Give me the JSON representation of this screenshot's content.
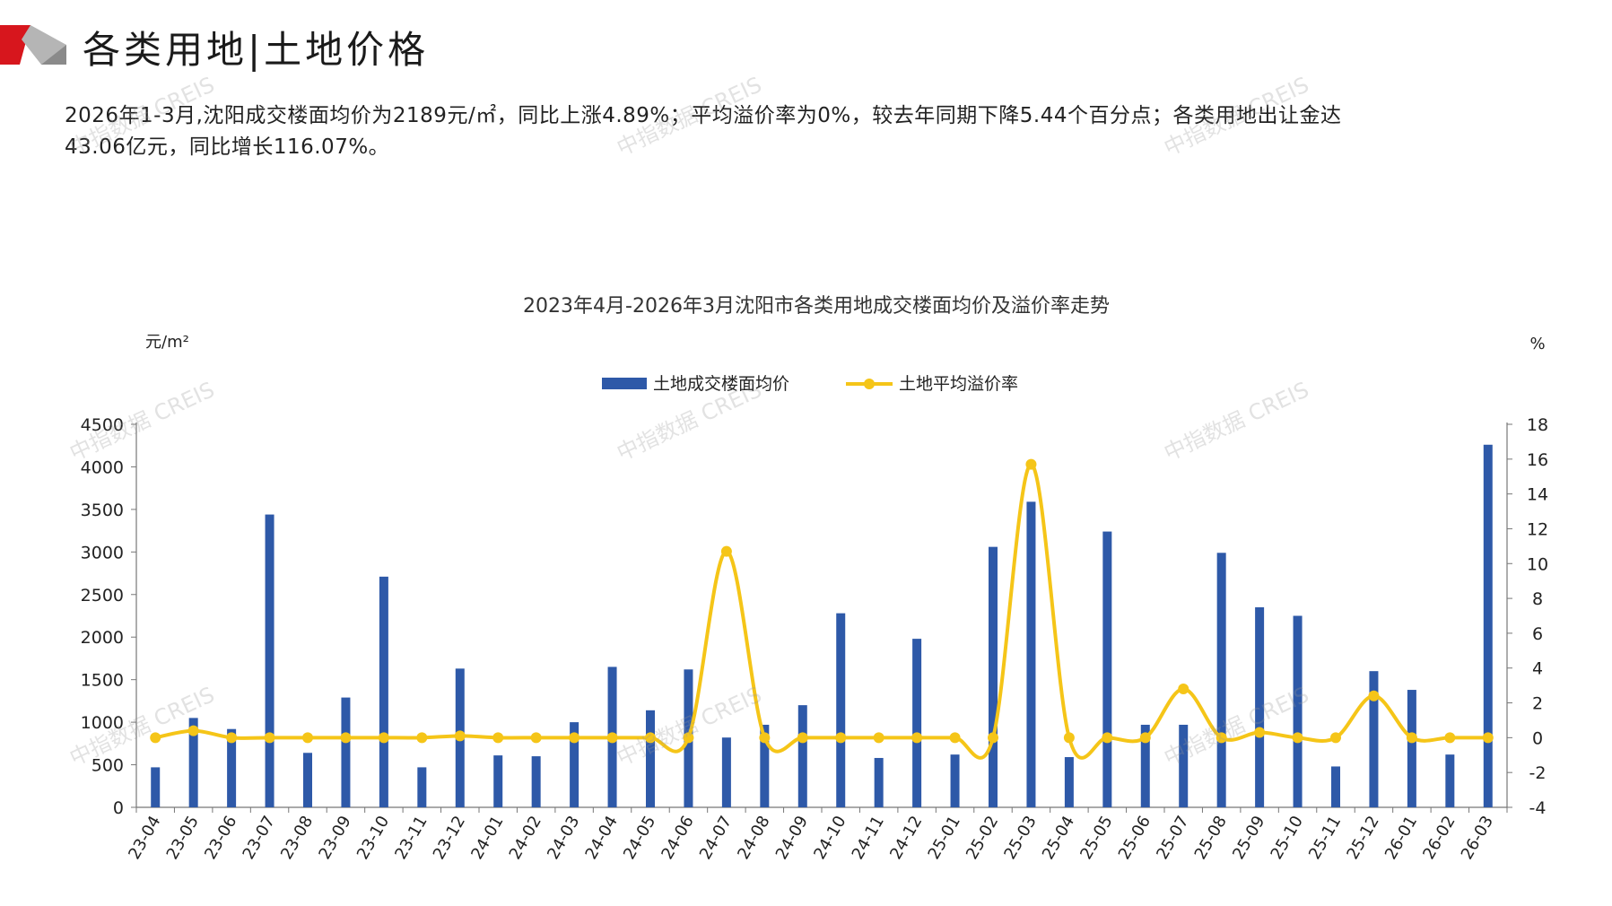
{
  "header": {
    "title": "各类用地|土地价格"
  },
  "summary": {
    "line1": "2026年1-3月,沈阳成交楼面均价为2189元/㎡，同比上涨4.89%；平均溢价率为0%，较去年同期下降5.44个百分点；各类用地出让金达",
    "line2": "43.06亿元，同比增长116.07%。"
  },
  "watermark": {
    "text": "中指数据 CREIS"
  },
  "colors": {
    "bar": "#2e59a8",
    "line": "#f5c518",
    "logo_red": "#d7161d",
    "logo_grey": "#9a9a9a"
  },
  "chart_data": {
    "type": "bar",
    "title": "2023年4月-2026年3月沈阳市各类用地成交楼面均价及溢价率走势",
    "y_left_label": "元/m²",
    "y_right_label": "%",
    "legend_placement": "top-center",
    "ylim_left": [
      0,
      4500
    ],
    "ylim_right": [
      -4,
      18
    ],
    "yticks_left": [
      "0",
      "500",
      "1000",
      "1500",
      "2000",
      "2500",
      "3000",
      "3500",
      "4000",
      "4500"
    ],
    "yticks_right": [
      "-4",
      "-2",
      "0",
      "2",
      "4",
      "6",
      "8",
      "10",
      "12",
      "14",
      "16",
      "18"
    ],
    "categories": [
      "23-04",
      "23-05",
      "23-06",
      "23-07",
      "23-08",
      "23-09",
      "23-10",
      "23-11",
      "23-12",
      "24-01",
      "24-02",
      "24-03",
      "24-04",
      "24-05",
      "24-06",
      "24-07",
      "24-08",
      "24-09",
      "24-10",
      "24-11",
      "24-12",
      "25-01",
      "25-02",
      "25-03",
      "25-04",
      "25-05",
      "25-06",
      "25-07",
      "25-08",
      "25-09",
      "25-10",
      "25-11",
      "25-12",
      "26-01",
      "26-02",
      "26-03"
    ],
    "series": [
      {
        "name": "土地成交楼面均价",
        "type": "bar",
        "axis": "left",
        "values": [
          470,
          1050,
          920,
          3440,
          640,
          1290,
          2710,
          470,
          1630,
          610,
          600,
          1000,
          1650,
          1140,
          1620,
          820,
          970,
          1200,
          2280,
          580,
          1980,
          620,
          3060,
          3590,
          590,
          3240,
          970,
          970,
          2990,
          2350,
          2250,
          480,
          1600,
          1380,
          620,
          4260
        ]
      },
      {
        "name": "土地平均溢价率",
        "type": "line",
        "axis": "right",
        "values": [
          0,
          0.4,
          0,
          0,
          0,
          0,
          0,
          0,
          0.1,
          0,
          0,
          0,
          0,
          0,
          0,
          10.7,
          0,
          0,
          0,
          0,
          0,
          0,
          0,
          15.7,
          0,
          0,
          0,
          2.8,
          0,
          0.3,
          0,
          0,
          2.4,
          0,
          0,
          0
        ]
      }
    ]
  }
}
